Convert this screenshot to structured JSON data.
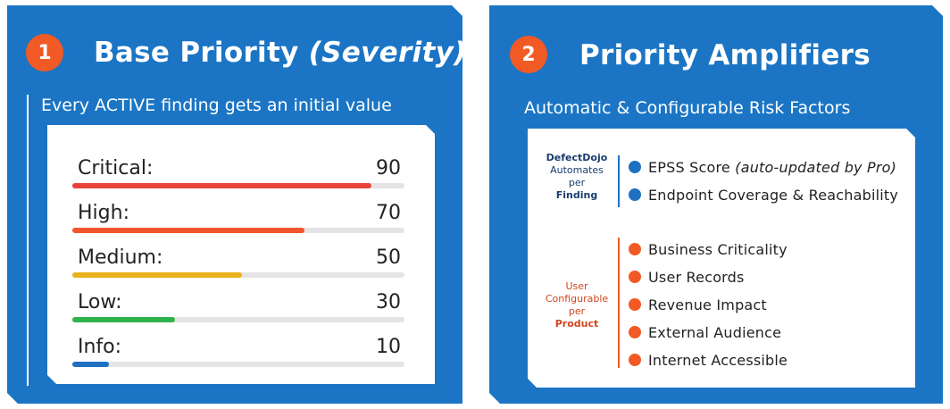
{
  "left_panel": {
    "number": "1",
    "title_main": "Base Priority",
    "title_italic": "(Severity)",
    "subtitle": "Every ACTIVE finding gets an initial value",
    "severities": [
      {
        "label": "Critical:",
        "value": "90",
        "fill_fraction": 0.9,
        "color": "#e8433b"
      },
      {
        "label": "High:",
        "value": "70",
        "fill_fraction": 0.7,
        "color": "#f0552b"
      },
      {
        "label": "Medium:",
        "value": "50",
        "fill_fraction": 0.51,
        "color": "#e9b31c"
      },
      {
        "label": "Low:",
        "value": "30",
        "fill_fraction": 0.31,
        "color": "#2fb24b"
      },
      {
        "label": "Info:",
        "value": "10",
        "fill_fraction": 0.11,
        "color": "#1f70c1"
      }
    ]
  },
  "right_panel": {
    "number": "2",
    "title": "Priority Amplifiers",
    "subtitle": "Automatic & Configurable Risk Factors",
    "auto_group": {
      "label_line1": "DefectDojo",
      "label_line2": "Automates",
      "label_line3": "per",
      "label_line4": "Finding",
      "factors": [
        {
          "text": "EPSS Score ",
          "italic": "(auto-updated by Pro)"
        },
        {
          "text": "Endpoint Coverage & Reachability",
          "italic": ""
        }
      ]
    },
    "user_group": {
      "label_line1": "User",
      "label_line2": "Configurable",
      "label_line3": "per",
      "label_line4": "Product",
      "factors": [
        {
          "text": "Business Criticality"
        },
        {
          "text": "User Records"
        },
        {
          "text": "Revenue Impact"
        },
        {
          "text": "External Audience"
        },
        {
          "text": "Internet Accessible"
        }
      ]
    }
  },
  "colors": {
    "panel_blue": "#1b75c4",
    "badge_orange": "#f15a24",
    "dot_blue": "#1f70c1",
    "dot_orange": "#f15a24"
  }
}
